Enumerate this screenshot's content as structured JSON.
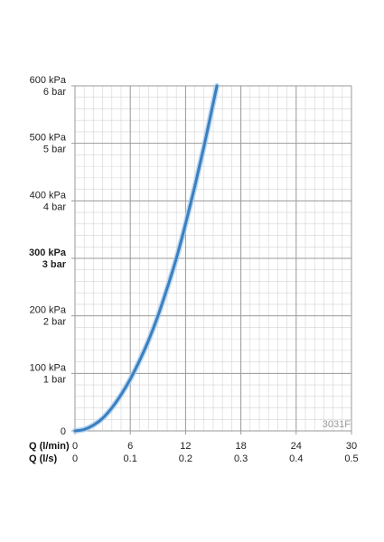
{
  "chart_data": {
    "type": "line",
    "code_label": "3031F",
    "x_axes": [
      {
        "name": "Q (l/min)",
        "ticks": [
          "0",
          "6",
          "12",
          "18",
          "24",
          "30"
        ]
      },
      {
        "name": "Q (l/s)",
        "ticks": [
          "0",
          "0.1",
          "0.2",
          "0.3",
          "0.4",
          "0.5"
        ]
      }
    ],
    "y_ticks": [
      {
        "value": 0,
        "kpa": "0",
        "bar": "",
        "bold": false
      },
      {
        "value": 100,
        "kpa": "100 kPa",
        "bar": "1 bar",
        "bold": false
      },
      {
        "value": 200,
        "kpa": "200 kPa",
        "bar": "2 bar",
        "bold": false
      },
      {
        "value": 300,
        "kpa": "300 kPa",
        "bar": "3 bar",
        "bold": true
      },
      {
        "value": 400,
        "kpa": "400 kPa",
        "bar": "4 bar",
        "bold": false
      },
      {
        "value": 500,
        "kpa": "500 kPa",
        "bar": "5 bar",
        "bold": false
      },
      {
        "value": 600,
        "kpa": "600 kPa",
        "bar": "6 bar",
        "bold": false
      }
    ],
    "xlim": [
      0,
      30
    ],
    "ylim": [
      0,
      600
    ],
    "grid": true,
    "series": [
      {
        "color": "#3a7fc0",
        "x": [
          0,
          1,
          2,
          3,
          4,
          5,
          6,
          7,
          8,
          9,
          10,
          11,
          12,
          13,
          14,
          15,
          15.4
        ],
        "y": [
          0,
          2.5,
          10,
          22,
          40,
          63,
          90,
          122,
          158,
          200,
          248,
          300,
          360,
          425,
          495,
          570,
          600
        ]
      }
    ]
  }
}
